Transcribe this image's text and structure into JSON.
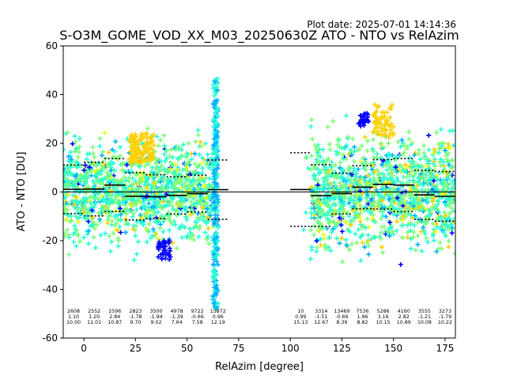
{
  "plot_date": "Plot date: 2025-07-01 14:14:36",
  "chart_data": {
    "type": "scatter",
    "title": "S-O3M_GOME_VOD_XX_M03_20250630Z ATO - NTO vs RelAzim",
    "xlabel": "RelAzim [degree]",
    "ylabel": "ATO - NTO [DU]",
    "xlim": [
      -10,
      180
    ],
    "ylim": [
      -60,
      60
    ],
    "xticks": [
      0,
      25,
      50,
      75,
      100,
      125,
      150,
      175
    ],
    "yticks": [
      -60,
      -40,
      -20,
      0,
      20,
      40,
      60
    ],
    "grid": false,
    "zero_line": 0,
    "point_colors": [
      "#7cff79",
      "#2affd5",
      "#ffd000",
      "#00b0ff",
      "#0000ff",
      "#eaff0c"
    ],
    "bins": [
      {
        "center": -5,
        "count": "2608",
        "mean": "1.10",
        "std": "10.00"
      },
      {
        "center": 5,
        "count": "2552",
        "mean": "1.20",
        "std": "11.01"
      },
      {
        "center": 15,
        "count": "2596",
        "mean": "2.84",
        "std": "10.87"
      },
      {
        "center": 25,
        "count": "2823",
        "mean": "-1.78",
        "std": "9.70"
      },
      {
        "center": 35,
        "count": "3500",
        "mean": "-1.94",
        "std": "9.02"
      },
      {
        "center": 45,
        "count": "4978",
        "mean": "-1.39",
        "std": "7.64"
      },
      {
        "center": 55,
        "count": "9722",
        "mean": "-0.66",
        "std": "7.58"
      },
      {
        "center": 65,
        "count": "15872",
        "mean": "0.96",
        "std": "12.19"
      },
      {
        "center": 105,
        "count": "10",
        "mean": "0.99",
        "std": "15.13"
      },
      {
        "center": 115,
        "count": "3314",
        "mean": "-1.51",
        "std": "12.67"
      },
      {
        "center": 125,
        "count": "13469",
        "mean": "-0.66",
        "std": "8.39"
      },
      {
        "center": 135,
        "count": "7536",
        "mean": "1.96",
        "std": "8.82"
      },
      {
        "center": 145,
        "count": "5286",
        "mean": "3.16",
        "std": "10.15"
      },
      {
        "center": 155,
        "count": "4160",
        "mean": "2.82",
        "std": "10.89"
      },
      {
        "center": 165,
        "count": "3555",
        "mean": "-1.21",
        "std": "10.08"
      },
      {
        "center": 175,
        "count": "3273",
        "mean": "-1.79",
        "std": "10.22"
      }
    ]
  }
}
